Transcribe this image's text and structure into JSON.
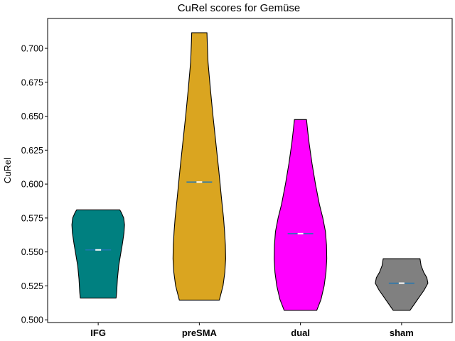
{
  "chart_data": {
    "type": "violin",
    "title": "CuRel scores for Gemüse",
    "xlabel": "",
    "ylabel": "CuRel",
    "ylim": [
      0.498,
      0.722
    ],
    "yticks": [
      "0.500",
      "0.525",
      "0.550",
      "0.575",
      "0.600",
      "0.625",
      "0.650",
      "0.675",
      "0.700"
    ],
    "grid": false,
    "legend": "none",
    "categories": [
      "IFG",
      "preSMA",
      "dual",
      "sham"
    ],
    "groups": [
      {
        "label": "IFG",
        "color": "#008080",
        "min": 0.516,
        "max": 0.581,
        "median": 0.5515,
        "mean": 0.5515,
        "profile": [
          [
            0.516,
            0.68
          ],
          [
            0.52,
            0.7
          ],
          [
            0.53,
            0.73
          ],
          [
            0.54,
            0.78
          ],
          [
            0.548,
            0.85
          ],
          [
            0.556,
            0.92
          ],
          [
            0.564,
            0.98
          ],
          [
            0.57,
            1.0
          ],
          [
            0.575,
            0.97
          ],
          [
            0.579,
            0.88
          ],
          [
            0.581,
            0.82
          ]
        ]
      },
      {
        "label": "preSMA",
        "color": "#DAA520",
        "min": 0.5145,
        "max": 0.7115,
        "median": 0.6015,
        "mean": 0.6015,
        "profile": [
          [
            0.5145,
            0.76
          ],
          [
            0.525,
            0.9
          ],
          [
            0.535,
            0.97
          ],
          [
            0.545,
            1.0
          ],
          [
            0.555,
            0.99
          ],
          [
            0.565,
            0.96
          ],
          [
            0.575,
            0.92
          ],
          [
            0.59,
            0.84
          ],
          [
            0.61,
            0.74
          ],
          [
            0.63,
            0.63
          ],
          [
            0.65,
            0.52
          ],
          [
            0.67,
            0.42
          ],
          [
            0.69,
            0.33
          ],
          [
            0.705,
            0.3
          ],
          [
            0.7115,
            0.29
          ]
        ]
      },
      {
        "label": "dual",
        "color": "#FF00FF",
        "min": 0.507,
        "max": 0.6475,
        "median": 0.5635,
        "mean": 0.5635,
        "profile": [
          [
            0.507,
            0.62
          ],
          [
            0.515,
            0.78
          ],
          [
            0.525,
            0.9
          ],
          [
            0.535,
            0.97
          ],
          [
            0.545,
            1.0
          ],
          [
            0.555,
            0.99
          ],
          [
            0.565,
            0.95
          ],
          [
            0.575,
            0.85
          ],
          [
            0.585,
            0.72
          ],
          [
            0.6,
            0.57
          ],
          [
            0.615,
            0.44
          ],
          [
            0.63,
            0.33
          ],
          [
            0.64,
            0.27
          ],
          [
            0.6475,
            0.23
          ]
        ]
      },
      {
        "label": "sham",
        "color": "#808080",
        "min": 0.507,
        "max": 0.545,
        "median": 0.527,
        "mean": 0.527,
        "profile": [
          [
            0.507,
            0.32
          ],
          [
            0.512,
            0.5
          ],
          [
            0.517,
            0.68
          ],
          [
            0.522,
            0.86
          ],
          [
            0.527,
            1.0
          ],
          [
            0.531,
            0.96
          ],
          [
            0.535,
            0.84
          ],
          [
            0.54,
            0.74
          ],
          [
            0.545,
            0.7
          ]
        ]
      }
    ],
    "median_marker_color": "#FFFFFF",
    "mean_marker_color": "#1F77B4"
  }
}
